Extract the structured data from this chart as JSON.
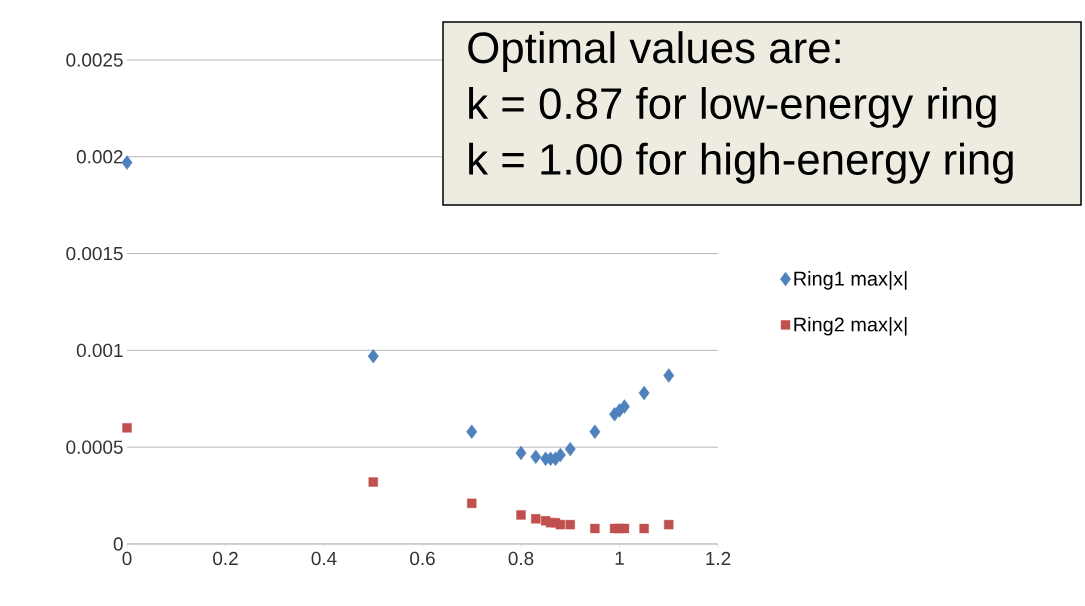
{
  "chart_data": {
    "type": "scatter",
    "x": [
      0,
      0.5,
      0.7,
      0.8,
      0.83,
      0.85,
      0.86,
      0.87,
      0.88,
      0.9,
      0.95,
      0.99,
      1.0,
      1.01,
      1.05,
      1.1
    ],
    "series": [
      {
        "name": "Ring1 max|x|",
        "color": "#4f81bd",
        "marker": "diamond",
        "values": [
          0.00197,
          0.00097,
          0.00058,
          0.00047,
          0.00045,
          0.00044,
          0.00044,
          0.00044,
          0.00046,
          0.00049,
          0.00058,
          0.00067,
          0.00069,
          0.00071,
          0.00078,
          0.00087
        ]
      },
      {
        "name": "Ring2 max|x|",
        "color": "#c0504d",
        "marker": "square",
        "values": [
          0.0006,
          0.00032,
          0.00021,
          0.00015,
          0.00013,
          0.00012,
          0.00011,
          0.00011,
          0.0001,
          0.0001,
          8e-05,
          8e-05,
          8e-05,
          8e-05,
          8e-05,
          0.0001
        ]
      }
    ],
    "xlim": [
      0,
      1.2
    ],
    "xticks": [
      0,
      0.2,
      0.4,
      0.6,
      0.8,
      1,
      1.2
    ],
    "ylim": [
      0,
      0.0025
    ],
    "yticks": [
      0,
      0.0005,
      0.001,
      0.0015,
      0.002,
      0.0025
    ],
    "grid": "y",
    "legend": "right",
    "annotations": [
      "Optimal values are:",
      "k = 0.87 for low-energy ring",
      "k = 1.00 for high-energy ring"
    ]
  }
}
